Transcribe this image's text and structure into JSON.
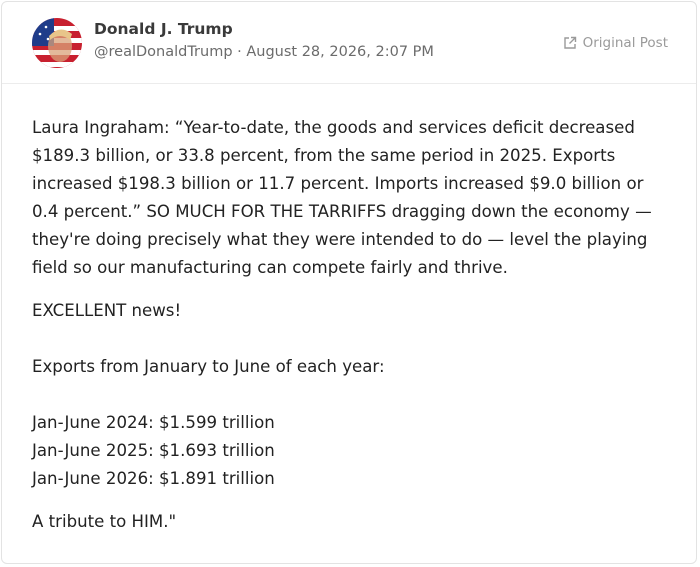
{
  "post": {
    "author": "Donald J. Trump",
    "handle": "@realDonaldTrump",
    "separator": "·",
    "date": "August 28, 2026, 2:07 PM",
    "original_link": "Original Post",
    "paragraphs": [
      [
        "Laura Ingraham: “Year-to-date, the goods and services deficit decreased $189.3 billion, or 33.8 percent, from the same period in 2025. Exports increased $198.3 billion or 11.7 percent. Imports increased $9.0 billion or 0.4 percent.” SO MUCH FOR THE TARRIFFS dragging down the economy — they're doing precisely what they were intended to do — level the playing field so our manufacturing can compete fairly and thrive."
      ],
      [
        "EXCELLENT news!"
      ],
      [
        "Exports from January to June of each year:"
      ],
      [
        "Jan-June 2024: $1.599 trillion",
        "Jan-June 2025: $1.693 trillion",
        "Jan-June 2026: $1.891 trillion"
      ],
      [
        "A tribute to HIM.\""
      ]
    ]
  }
}
